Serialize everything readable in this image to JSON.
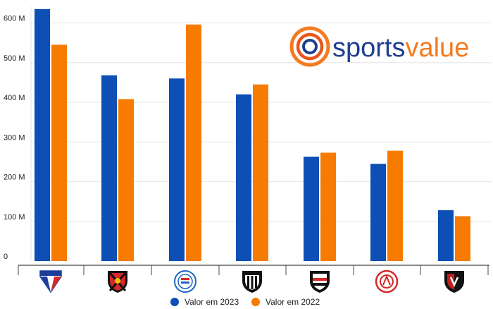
{
  "brand": {
    "part1": "sports",
    "part2": "value",
    "color_blue": "#1f3f8f",
    "color_orange": "#f47b20"
  },
  "chart_data": {
    "type": "bar",
    "categories": [
      "Fortaleza",
      "Sport",
      "Bahia",
      "Ceará",
      "Santa Cruz",
      "Náutico",
      "Vitória"
    ],
    "series": [
      {
        "name": "Valor em 2023",
        "color": "#0d4fb5",
        "values": [
          635,
          468,
          460,
          420,
          263,
          245,
          128
        ]
      },
      {
        "name": "Valor em 2022",
        "color": "#f77b00",
        "values": [
          545,
          408,
          596,
          445,
          273,
          278,
          113
        ]
      }
    ],
    "y_ticks": [
      {
        "value": 0,
        "label": "0"
      },
      {
        "value": 100,
        "label": "100 M"
      },
      {
        "value": 200,
        "label": "200 M"
      },
      {
        "value": 300,
        "label": "300 M"
      },
      {
        "value": 400,
        "label": "400 M"
      },
      {
        "value": 500,
        "label": "500 M"
      },
      {
        "value": 600,
        "label": "600 M"
      }
    ],
    "ylim": [
      0,
      640
    ],
    "grid": true,
    "legend": "bottom-center",
    "category_icons": [
      "fortaleza-crest-icon",
      "sport-crest-icon",
      "bahia-crest-icon",
      "ceara-crest-icon",
      "santa-cruz-crest-icon",
      "nautico-crest-icon",
      "vitoria-crest-icon"
    ]
  }
}
